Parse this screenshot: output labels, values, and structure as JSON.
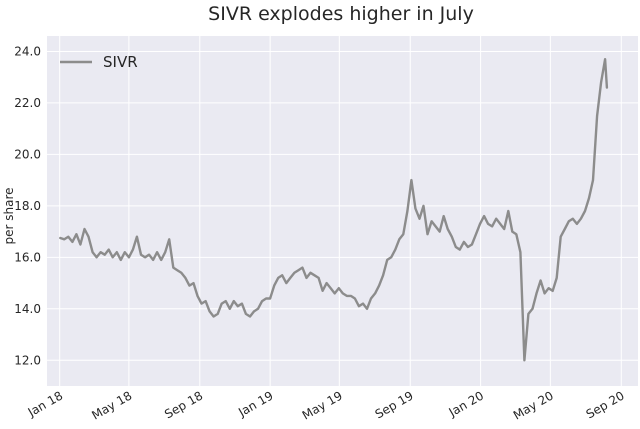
{
  "chart_data": {
    "type": "line",
    "title": "SIVR explodes higher in July",
    "xlabel": "",
    "ylabel": "per share",
    "ylim": [
      11.0,
      24.6
    ],
    "xlim": [
      "2017-12-10",
      "2020-09-30"
    ],
    "grid": true,
    "legend_position": "top-left",
    "style": {
      "background": "#eaeaf2",
      "grid": "#ffffff",
      "line": "#8c8c8c",
      "text": "#262626"
    },
    "y_ticks": [
      {
        "value": 12.0,
        "label": "12.0"
      },
      {
        "value": 14.0,
        "label": "14.0"
      },
      {
        "value": 16.0,
        "label": "16.0"
      },
      {
        "value": 18.0,
        "label": "18.0"
      },
      {
        "value": 20.0,
        "label": "20.0"
      },
      {
        "value": 22.0,
        "label": "22.0"
      },
      {
        "value": 24.0,
        "label": "24.0"
      }
    ],
    "x_ticks": [
      {
        "date": "2018-01-01",
        "label": "Jan 18"
      },
      {
        "date": "2018-05-01",
        "label": "May 18"
      },
      {
        "date": "2018-09-01",
        "label": "Sep 18"
      },
      {
        "date": "2019-01-01",
        "label": "Jan 19"
      },
      {
        "date": "2019-05-01",
        "label": "May 19"
      },
      {
        "date": "2019-09-01",
        "label": "Sep 19"
      },
      {
        "date": "2020-01-01",
        "label": "Jan 20"
      },
      {
        "date": "2020-05-01",
        "label": "May 20"
      },
      {
        "date": "2020-09-01",
        "label": "Sep 20"
      }
    ],
    "series": [
      {
        "name": "SIVR",
        "points": [
          [
            "2018-01-02",
            16.75
          ],
          [
            "2018-01-09",
            16.7
          ],
          [
            "2018-01-16",
            16.8
          ],
          [
            "2018-01-23",
            16.6
          ],
          [
            "2018-01-30",
            16.9
          ],
          [
            "2018-02-06",
            16.5
          ],
          [
            "2018-02-13",
            17.1
          ],
          [
            "2018-02-20",
            16.8
          ],
          [
            "2018-02-27",
            16.2
          ],
          [
            "2018-03-06",
            16.0
          ],
          [
            "2018-03-13",
            16.2
          ],
          [
            "2018-03-20",
            16.1
          ],
          [
            "2018-03-27",
            16.3
          ],
          [
            "2018-04-03",
            16.0
          ],
          [
            "2018-04-10",
            16.2
          ],
          [
            "2018-04-17",
            15.9
          ],
          [
            "2018-04-24",
            16.2
          ],
          [
            "2018-05-01",
            16.0
          ],
          [
            "2018-05-08",
            16.3
          ],
          [
            "2018-05-15",
            16.8
          ],
          [
            "2018-05-22",
            16.1
          ],
          [
            "2018-05-29",
            16.0
          ],
          [
            "2018-06-05",
            16.1
          ],
          [
            "2018-06-12",
            15.9
          ],
          [
            "2018-06-19",
            16.2
          ],
          [
            "2018-06-26",
            15.9
          ],
          [
            "2018-07-03",
            16.2
          ],
          [
            "2018-07-10",
            16.7
          ],
          [
            "2018-07-17",
            15.6
          ],
          [
            "2018-07-24",
            15.5
          ],
          [
            "2018-07-31",
            15.4
          ],
          [
            "2018-08-07",
            15.2
          ],
          [
            "2018-08-14",
            14.9
          ],
          [
            "2018-08-21",
            15.0
          ],
          [
            "2018-08-28",
            14.5
          ],
          [
            "2018-09-04",
            14.2
          ],
          [
            "2018-09-11",
            14.3
          ],
          [
            "2018-09-18",
            13.9
          ],
          [
            "2018-09-25",
            13.7
          ],
          [
            "2018-10-02",
            13.8
          ],
          [
            "2018-10-09",
            14.2
          ],
          [
            "2018-10-16",
            14.3
          ],
          [
            "2018-10-23",
            14.0
          ],
          [
            "2018-10-30",
            14.3
          ],
          [
            "2018-11-06",
            14.1
          ],
          [
            "2018-11-13",
            14.2
          ],
          [
            "2018-11-20",
            13.8
          ],
          [
            "2018-11-27",
            13.7
          ],
          [
            "2018-12-04",
            13.9
          ],
          [
            "2018-12-11",
            14.0
          ],
          [
            "2018-12-18",
            14.3
          ],
          [
            "2018-12-25",
            14.4
          ],
          [
            "2019-01-01",
            14.4
          ],
          [
            "2019-01-08",
            14.9
          ],
          [
            "2019-01-15",
            15.2
          ],
          [
            "2019-01-22",
            15.3
          ],
          [
            "2019-01-29",
            15.0
          ],
          [
            "2019-02-05",
            15.2
          ],
          [
            "2019-02-12",
            15.4
          ],
          [
            "2019-02-19",
            15.5
          ],
          [
            "2019-02-26",
            15.6
          ],
          [
            "2019-03-05",
            15.2
          ],
          [
            "2019-03-12",
            15.4
          ],
          [
            "2019-03-19",
            15.3
          ],
          [
            "2019-03-26",
            15.2
          ],
          [
            "2019-04-02",
            14.7
          ],
          [
            "2019-04-09",
            15.0
          ],
          [
            "2019-04-16",
            14.8
          ],
          [
            "2019-04-23",
            14.6
          ],
          [
            "2019-04-30",
            14.8
          ],
          [
            "2019-05-07",
            14.6
          ],
          [
            "2019-05-14",
            14.5
          ],
          [
            "2019-05-21",
            14.5
          ],
          [
            "2019-05-28",
            14.4
          ],
          [
            "2019-06-04",
            14.1
          ],
          [
            "2019-06-11",
            14.2
          ],
          [
            "2019-06-18",
            14.0
          ],
          [
            "2019-06-25",
            14.4
          ],
          [
            "2019-07-02",
            14.6
          ],
          [
            "2019-07-09",
            14.9
          ],
          [
            "2019-07-16",
            15.3
          ],
          [
            "2019-07-23",
            15.9
          ],
          [
            "2019-07-30",
            16.0
          ],
          [
            "2019-08-06",
            16.3
          ],
          [
            "2019-08-13",
            16.7
          ],
          [
            "2019-08-20",
            16.9
          ],
          [
            "2019-08-27",
            17.8
          ],
          [
            "2019-09-03",
            19.0
          ],
          [
            "2019-09-10",
            17.9
          ],
          [
            "2019-09-17",
            17.5
          ],
          [
            "2019-09-24",
            18.0
          ],
          [
            "2019-10-01",
            16.9
          ],
          [
            "2019-10-08",
            17.4
          ],
          [
            "2019-10-15",
            17.2
          ],
          [
            "2019-10-22",
            17.0
          ],
          [
            "2019-10-29",
            17.6
          ],
          [
            "2019-11-05",
            17.1
          ],
          [
            "2019-11-12",
            16.8
          ],
          [
            "2019-11-19",
            16.4
          ],
          [
            "2019-11-26",
            16.3
          ],
          [
            "2019-12-03",
            16.6
          ],
          [
            "2019-12-10",
            16.4
          ],
          [
            "2019-12-17",
            16.5
          ],
          [
            "2019-12-24",
            16.9
          ],
          [
            "2019-12-31",
            17.3
          ],
          [
            "2020-01-07",
            17.6
          ],
          [
            "2020-01-14",
            17.3
          ],
          [
            "2020-01-21",
            17.2
          ],
          [
            "2020-01-28",
            17.5
          ],
          [
            "2020-02-04",
            17.3
          ],
          [
            "2020-02-11",
            17.1
          ],
          [
            "2020-02-18",
            17.8
          ],
          [
            "2020-02-25",
            17.0
          ],
          [
            "2020-03-03",
            16.9
          ],
          [
            "2020-03-10",
            16.2
          ],
          [
            "2020-03-17",
            12.0
          ],
          [
            "2020-03-24",
            13.8
          ],
          [
            "2020-03-31",
            14.0
          ],
          [
            "2020-04-07",
            14.6
          ],
          [
            "2020-04-14",
            15.1
          ],
          [
            "2020-04-21",
            14.6
          ],
          [
            "2020-04-28",
            14.8
          ],
          [
            "2020-05-05",
            14.7
          ],
          [
            "2020-05-12",
            15.2
          ],
          [
            "2020-05-19",
            16.8
          ],
          [
            "2020-05-26",
            17.1
          ],
          [
            "2020-06-02",
            17.4
          ],
          [
            "2020-06-09",
            17.5
          ],
          [
            "2020-06-16",
            17.3
          ],
          [
            "2020-06-23",
            17.5
          ],
          [
            "2020-06-30",
            17.8
          ],
          [
            "2020-07-07",
            18.3
          ],
          [
            "2020-07-14",
            19.0
          ],
          [
            "2020-07-21",
            21.5
          ],
          [
            "2020-07-28",
            22.8
          ],
          [
            "2020-08-04",
            23.7
          ],
          [
            "2020-08-07",
            22.6
          ]
        ]
      }
    ]
  }
}
